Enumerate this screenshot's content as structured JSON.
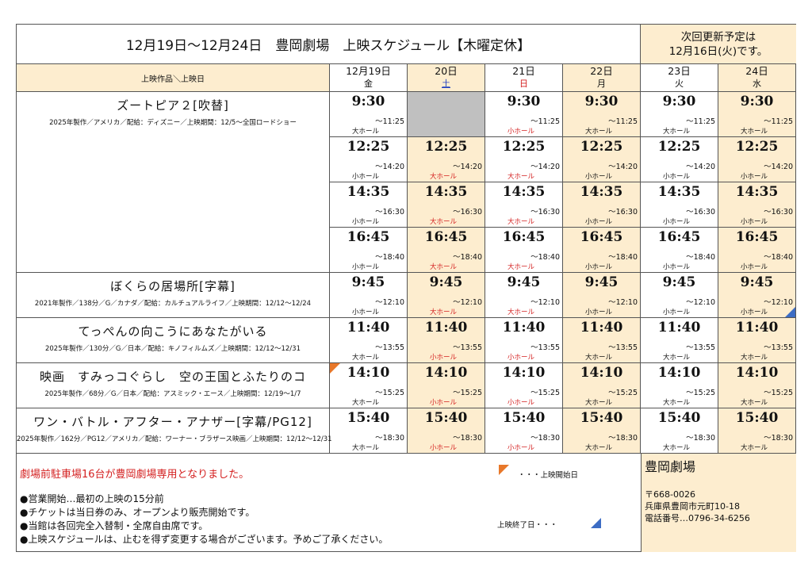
{
  "header": {
    "title": "12月19日～12月24日　豊岡劇場　上映スケジュール【木曜定休】",
    "update_line1": "次回更新予定は",
    "update_line2": "12月16日(火)です。",
    "corner_label": "上映作品＼上映日"
  },
  "days": [
    {
      "date": "12月19日",
      "weekday": "金",
      "weekday_color": "#111111",
      "cream": false
    },
    {
      "date": "20日",
      "weekday": "土",
      "weekday_color": "#2040c0",
      "cream": true
    },
    {
      "date": "21日",
      "weekday": "日",
      "weekday_color": "#d42020",
      "cream": false
    },
    {
      "date": "22日",
      "weekday": "月",
      "weekday_color": "#111111",
      "cream": true
    },
    {
      "date": "23日",
      "weekday": "火",
      "weekday_color": "#111111",
      "cream": false
    },
    {
      "date": "24日",
      "weekday": "水",
      "weekday_color": "#111111",
      "cream": true
    }
  ],
  "movies": [
    {
      "title": "ズートピア２[吹替]",
      "info": "2025年製作／アメリカ／配給：ディズニー／上映期間：12/5～全国ロードショー",
      "rows": 4
    },
    {
      "title": "ぼくらの居場所[字幕]",
      "info": "2021年製作／138分／G／カナダ／配給：カルチュアルライフ／上映期間：12/12～12/24",
      "rows": 1
    },
    {
      "title": "てっぺんの向こうにあなたがいる",
      "info": "2025年製作／130分／G／日本／配給：キノフィルムズ／上映期間：12/12～12/31",
      "rows": 1
    },
    {
      "title": "映画　すみっコぐらし　空の王国とふたりのコ",
      "info": "2025年製作／68分／G／日本／配給：アスミック・エース／上映期間：12/19～1/7",
      "rows": 1
    },
    {
      "title": "ワン・バトル・アフター・アナザー[字幕/PG12]",
      "info": "2025年製作／162分／PG12／アメリカ／配給：ワーナー・ブラザース映画／上映期間：12/12～12/31",
      "rows": 1
    }
  ],
  "schedule": [
    {
      "start": "9:30",
      "end": "～11:25",
      "halls": [
        "大ホール",
        null,
        "小ホール",
        "大ホール",
        "大ホール",
        "大ホール"
      ],
      "red": [
        0,
        0,
        1,
        0,
        0,
        0
      ]
    },
    {
      "start": "12:25",
      "end": "～14:20",
      "halls": [
        "小ホール",
        "大ホール",
        "大ホール",
        "小ホール",
        "小ホール",
        "小ホール"
      ],
      "red": [
        0,
        1,
        1,
        0,
        0,
        0
      ]
    },
    {
      "start": "14:35",
      "end": "～16:30",
      "halls": [
        "小ホール",
        "大ホール",
        "大ホール",
        "小ホール",
        "小ホール",
        "小ホール"
      ],
      "red": [
        0,
        1,
        1,
        0,
        0,
        0
      ]
    },
    {
      "start": "16:45",
      "end": "～18:40",
      "halls": [
        "小ホール",
        "大ホール",
        "大ホール",
        "小ホール",
        "小ホール",
        "小ホール"
      ],
      "red": [
        0,
        1,
        1,
        0,
        0,
        0
      ]
    },
    {
      "start": "9:45",
      "end": "～12:10",
      "halls": [
        "小ホール",
        "大ホール",
        "大ホール",
        "小ホール",
        "小ホール",
        "小ホール"
      ],
      "red": [
        0,
        1,
        1,
        0,
        0,
        0
      ]
    },
    {
      "start": "11:40",
      "end": "～13:55",
      "halls": [
        "大ホール",
        "小ホール",
        "小ホール",
        "大ホール",
        "大ホール",
        "大ホール"
      ],
      "red": [
        0,
        1,
        1,
        0,
        0,
        0
      ]
    },
    {
      "start": "14:10",
      "end": "～15:25",
      "halls": [
        "大ホール",
        "小ホール",
        "小ホール",
        "大ホール",
        "大ホール",
        "大ホール"
      ],
      "red": [
        0,
        1,
        1,
        0,
        0,
        0
      ]
    },
    {
      "start": "15:40",
      "end": "～18:30",
      "halls": [
        "大ホール",
        "小ホール",
        "小ホール",
        "大ホール",
        "大ホール",
        "大ホール"
      ],
      "red": [
        0,
        1,
        1,
        0,
        0,
        0
      ]
    }
  ],
  "footer": {
    "notice": "劇場前駐車場16台が豊岡劇場専用となりました。",
    "notes": [
      "●営業開始…最初の上映の15分前",
      "●チケットは当日券のみ、オープンより販売開始です。",
      "●当館は各回完全入替制・全席自由席です。",
      "●上映スケジュールは、止むを得ず変更する場合がございます。予めご了承ください。"
    ],
    "legend_start": "・・・上映開始日",
    "legend_end": "上映終了日・・・"
  },
  "theater": {
    "name": "豊岡劇場",
    "postal": "〒668-0026",
    "address": "兵庫県豊岡市元町10-18",
    "phone": "電話番号…0796-34-6256"
  }
}
